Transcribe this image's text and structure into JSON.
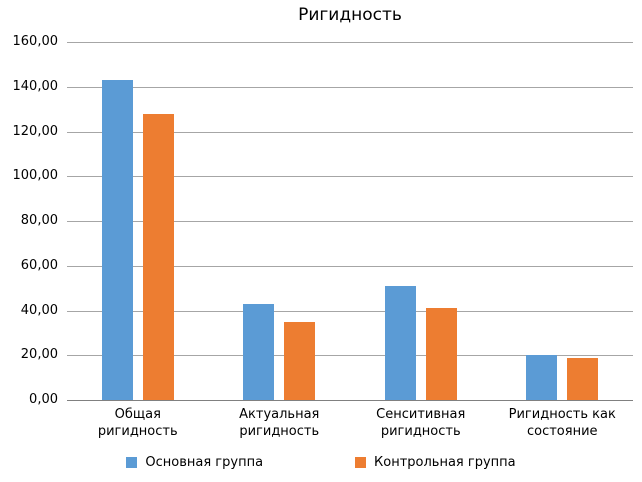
{
  "title": "Ригидность",
  "chart_data": {
    "type": "bar",
    "title": "Ригидность",
    "categories": [
      "Общая ригидность",
      "Актуальная ригидность",
      "Сенситивная ригидность",
      "Ригидность как состояние"
    ],
    "series": [
      {
        "name": "Основная группа",
        "color": "#5b9bd5",
        "values": [
          143,
          43,
          51,
          20
        ]
      },
      {
        "name": "Контрольная группа",
        "color": "#ed7d31",
        "values": [
          128,
          35,
          41,
          19
        ]
      }
    ],
    "xlabel": "",
    "ylabel": "",
    "ylim": [
      0,
      160
    ],
    "ytick_step": 20,
    "ytick_labels": [
      "0,00",
      "20,00",
      "40,00",
      "60,00",
      "80,00",
      "100,00",
      "120,00",
      "140,00",
      "160,00"
    ],
    "grid": true,
    "legend_position": "bottom"
  },
  "colors": {
    "gridline": "#a6a6a6",
    "axis": "#808080",
    "text": "#000000",
    "background": "#ffffff"
  }
}
